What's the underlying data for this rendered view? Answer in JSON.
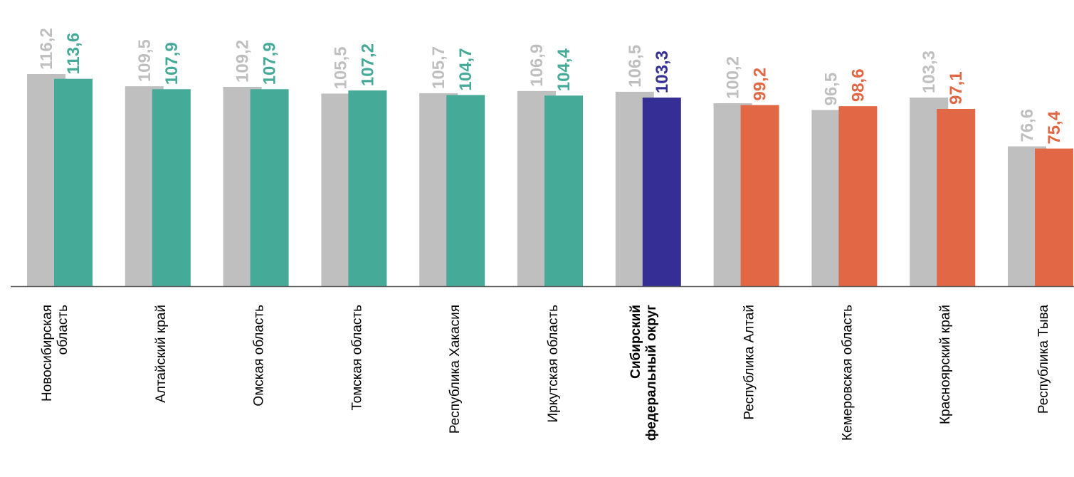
{
  "chart_data": {
    "type": "bar",
    "title": "",
    "xlabel": "",
    "ylabel": "",
    "ylim": [
      0,
      116.2
    ],
    "grid": false,
    "categories": [
      [
        "Новосибирская",
        "область"
      ],
      [
        "Алтайский край"
      ],
      [
        "Омская область"
      ],
      [
        "Томская область"
      ],
      [
        "Республика Хакасия"
      ],
      [
        "Иркутская область"
      ],
      [
        "Сибирский",
        "федеральный округ"
      ],
      [
        "Республика Алтай"
      ],
      [
        "Кемеровская область"
      ],
      [
        "Красноярский  край"
      ],
      [
        "Республика Тыва"
      ]
    ],
    "category_bold": [
      false,
      false,
      false,
      false,
      false,
      false,
      true,
      false,
      false,
      false,
      false
    ],
    "series": [
      {
        "values": [
          116.2,
          109.5,
          109.2,
          105.5,
          105.7,
          106.9,
          106.5,
          100.2,
          96.5,
          103.3,
          76.6
        ],
        "labels": [
          "116,2",
          "109,5",
          "109,2",
          "105,5",
          "105,7",
          "106,9",
          "106,5",
          "100,2",
          "96,5",
          "103,3",
          "76,6"
        ]
      },
      {
        "values": [
          113.6,
          107.9,
          107.9,
          107.2,
          104.7,
          104.4,
          103.3,
          99.2,
          98.6,
          97.1,
          75.4
        ],
        "labels": [
          "113,6",
          "107,9",
          "107,9",
          "107,2",
          "104,7",
          "104,4",
          "103,3",
          "99,2",
          "98,6",
          "97,1",
          "75,4"
        ]
      }
    ],
    "colors": {
      "series1": "#bfbfbf",
      "above": "#45aa98",
      "district": "#352f95",
      "below": "#e26845",
      "axis": "#595959"
    },
    "bar_color_groups": [
      "above",
      "above",
      "above",
      "above",
      "above",
      "above",
      "district",
      "below",
      "below",
      "below",
      "below"
    ]
  }
}
